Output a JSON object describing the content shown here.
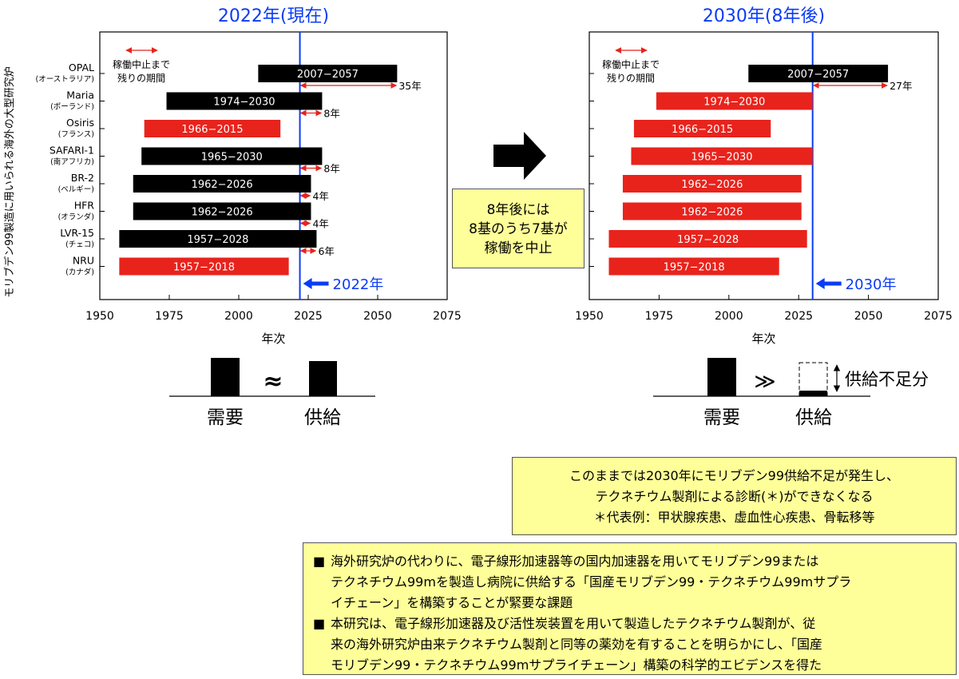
{
  "y_axis_title": "モリブデン99製造に用いられる海外の大型研究炉",
  "reactors": [
    {
      "name": "OPAL",
      "country": "(オーストラリア)"
    },
    {
      "name": "Maria",
      "country": "(ポーランド)"
    },
    {
      "name": "Osiris",
      "country": "(フランス)"
    },
    {
      "name": "SAFARI-1",
      "country": "(南アフリカ)"
    },
    {
      "name": "BR-2",
      "country": "(ベルギー)"
    },
    {
      "name": "HFR",
      "country": "(オランダ)"
    },
    {
      "name": "LVR-15",
      "country": "(チェコ)"
    },
    {
      "name": "NRU",
      "country": "(カナダ)"
    }
  ],
  "chart_data": [
    {
      "type": "bar",
      "title": "2022年(現在)",
      "xlabel": "年次",
      "xlim": [
        1950,
        2075
      ],
      "xticks": [
        "1950",
        "1975",
        "2000",
        "2025",
        "2050",
        "2075"
      ],
      "current_year": 2022,
      "current_year_label": "2022年",
      "legend_text": [
        "稼働中止まで",
        "残りの期間"
      ],
      "bars": [
        {
          "start": 2007,
          "end": 2057,
          "label": "2007−2057",
          "color": "#000000",
          "remaining": "35年"
        },
        {
          "start": 1974,
          "end": 2030,
          "label": "1974−2030",
          "color": "#000000",
          "remaining": "8年"
        },
        {
          "start": 1966,
          "end": 2015,
          "label": "1966−2015",
          "color": "#e8231c",
          "remaining": ""
        },
        {
          "start": 1965,
          "end": 2030,
          "label": "1965−2030",
          "color": "#000000",
          "remaining": "8年"
        },
        {
          "start": 1962,
          "end": 2026,
          "label": "1962−2026",
          "color": "#000000",
          "remaining": "4年"
        },
        {
          "start": 1962,
          "end": 2026,
          "label": "1962−2026",
          "color": "#000000",
          "remaining": "4年"
        },
        {
          "start": 1957,
          "end": 2028,
          "label": "1957−2028",
          "color": "#000000",
          "remaining": "6年"
        },
        {
          "start": 1957,
          "end": 2018,
          "label": "1957−2018",
          "color": "#e8231c",
          "remaining": ""
        }
      ]
    },
    {
      "type": "bar",
      "title": "2030年(8年後)",
      "xlabel": "年次",
      "xlim": [
        1950,
        2075
      ],
      "xticks": [
        "1950",
        "1975",
        "2000",
        "2025",
        "2050",
        "2075"
      ],
      "current_year": 2030,
      "current_year_label": "2030年",
      "legend_text": [
        "稼働中止まで",
        "残りの期間"
      ],
      "bars": [
        {
          "start": 2007,
          "end": 2057,
          "label": "2007−2057",
          "color": "#000000",
          "remaining": "27年"
        },
        {
          "start": 1974,
          "end": 2030,
          "label": "1974−2030",
          "color": "#e8231c",
          "remaining": ""
        },
        {
          "start": 1966,
          "end": 2015,
          "label": "1966−2015",
          "color": "#e8231c",
          "remaining": ""
        },
        {
          "start": 1965,
          "end": 2030,
          "label": "1965−2030",
          "color": "#e8231c",
          "remaining": ""
        },
        {
          "start": 1962,
          "end": 2026,
          "label": "1962−2026",
          "color": "#e8231c",
          "remaining": ""
        },
        {
          "start": 1962,
          "end": 2026,
          "label": "1962−2026",
          "color": "#e8231c",
          "remaining": ""
        },
        {
          "start": 1957,
          "end": 2028,
          "label": "1957−2028",
          "color": "#e8231c",
          "remaining": ""
        },
        {
          "start": 1957,
          "end": 2018,
          "label": "1957−2018",
          "color": "#e8231c",
          "remaining": ""
        }
      ]
    }
  ],
  "middle_box": [
    "8年後には",
    "8基のうち7基が",
    "稼働を中止"
  ],
  "balance_left": {
    "demand": "需要",
    "supply": "供給",
    "relation": "≈"
  },
  "balance_right": {
    "demand": "需要",
    "supply": "供給",
    "relation": "≫",
    "shortage": "供給不足分"
  },
  "warning_box": [
    "このままでは2030年にモリブデン99供給不足が発生し、",
    "テクネチウム製剤による診断(＊)ができなくなる",
    "＊代表例：甲状腺疾患、虚血性心疾患、骨転移等"
  ],
  "bullet_marker": "■",
  "bullets": [
    [
      "海外研究炉の代わりに、電子線形加速器等の国内加速器を用いてモリブデン99または",
      "テクネチウム99mを製造し病院に供給する「国産モリブデン99・テクネチウム99mサプラ",
      "イチェーン」を構築することが緊要な課題"
    ],
    [
      "本研究は、電子線形加速器及び活性炭装置を用いて製造したテクネチウム製剤が、従",
      "来の海外研究炉由来テクネチウム製剤と同等の薬効を有することを明らかにし、「国産",
      "モリブデン99・テクネチウム99mサプライチェーン」構築の科学的エビデンスを得た"
    ]
  ]
}
